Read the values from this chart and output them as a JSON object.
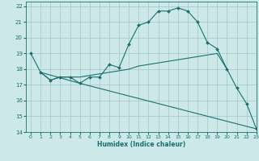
{
  "title": "",
  "xlabel": "Humidex (Indice chaleur)",
  "ylabel": "",
  "xlim": [
    -0.5,
    23
  ],
  "ylim": [
    14,
    22.3
  ],
  "xticks": [
    0,
    1,
    2,
    3,
    4,
    5,
    6,
    7,
    8,
    9,
    10,
    11,
    12,
    13,
    14,
    15,
    16,
    17,
    18,
    19,
    20,
    21,
    22,
    23
  ],
  "yticks": [
    14,
    15,
    16,
    17,
    18,
    19,
    20,
    21,
    22
  ],
  "bg_color": "#cce8e8",
  "grid_color": "#aacccc",
  "line_color": "#1a7070",
  "line1_x": [
    0,
    1,
    2,
    3,
    4,
    5,
    6,
    7,
    8,
    9,
    10,
    11,
    12,
    13,
    14,
    15,
    16,
    17,
    18,
    19,
    20,
    21,
    22,
    23
  ],
  "line1_y": [
    19.0,
    17.8,
    17.3,
    17.5,
    17.5,
    17.1,
    17.5,
    17.5,
    18.3,
    18.1,
    19.6,
    20.8,
    21.0,
    21.7,
    21.7,
    21.9,
    21.7,
    21.0,
    19.7,
    19.3,
    18.0,
    16.8,
    15.8,
    14.2
  ],
  "line2_x": [
    1,
    2,
    3,
    4,
    5,
    6,
    7,
    8,
    9,
    10,
    11,
    12,
    13,
    14,
    15,
    16,
    17,
    18,
    19,
    20
  ],
  "line2_y": [
    17.8,
    17.3,
    17.5,
    17.5,
    17.5,
    17.6,
    17.7,
    17.8,
    17.9,
    18.0,
    18.2,
    18.3,
    18.4,
    18.5,
    18.6,
    18.7,
    18.8,
    18.9,
    19.0,
    18.0
  ],
  "line3_x": [
    1,
    5,
    23
  ],
  "line3_y": [
    17.8,
    17.1,
    14.2
  ]
}
